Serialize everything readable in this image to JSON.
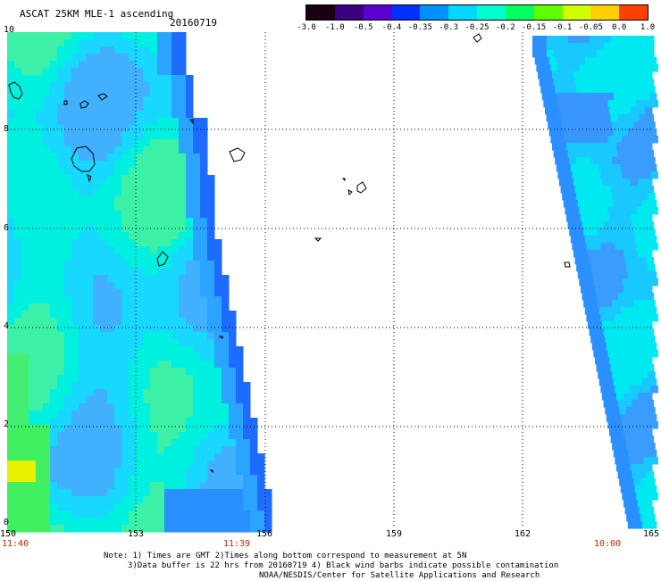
{
  "title": "ASCAT 25KM MLE-1 ascending",
  "date": "20160719",
  "colorbar": {
    "labels": [
      "-3.0",
      "-1.0",
      "-0.5",
      "-0.4",
      "-0.35",
      "-0.3",
      "-0.25",
      "-0.2",
      "-0.15",
      "-0.1",
      "-0.05",
      "0.0",
      "1.0"
    ],
    "colors": [
      "#1a0010",
      "#3a0080",
      "#5a00d0",
      "#0030ff",
      "#0090ff",
      "#00d8ff",
      "#00ffd0",
      "#00ff60",
      "#60ff00",
      "#d0ff00",
      "#ffd000",
      "#ff4000"
    ]
  },
  "axes": {
    "x_ticks": [
      "150",
      "153",
      "156",
      "159",
      "162",
      "165"
    ],
    "y_ticks": [
      "0",
      "2",
      "4",
      "6",
      "8",
      "10"
    ]
  },
  "times": {
    "left": "11:40",
    "middle": "11:39",
    "right": "10:00"
  },
  "notes": {
    "line1": "Note: 1) Times are GMT 2)Times along bottom correspond to measurement at 5N",
    "line2": "3)Data buffer is 22 hrs from 20160719 4) Black wind barbs indicate possible contamination",
    "line3": "NOAA/NESDIS/Center for Satellite Applications and Research"
  }
}
